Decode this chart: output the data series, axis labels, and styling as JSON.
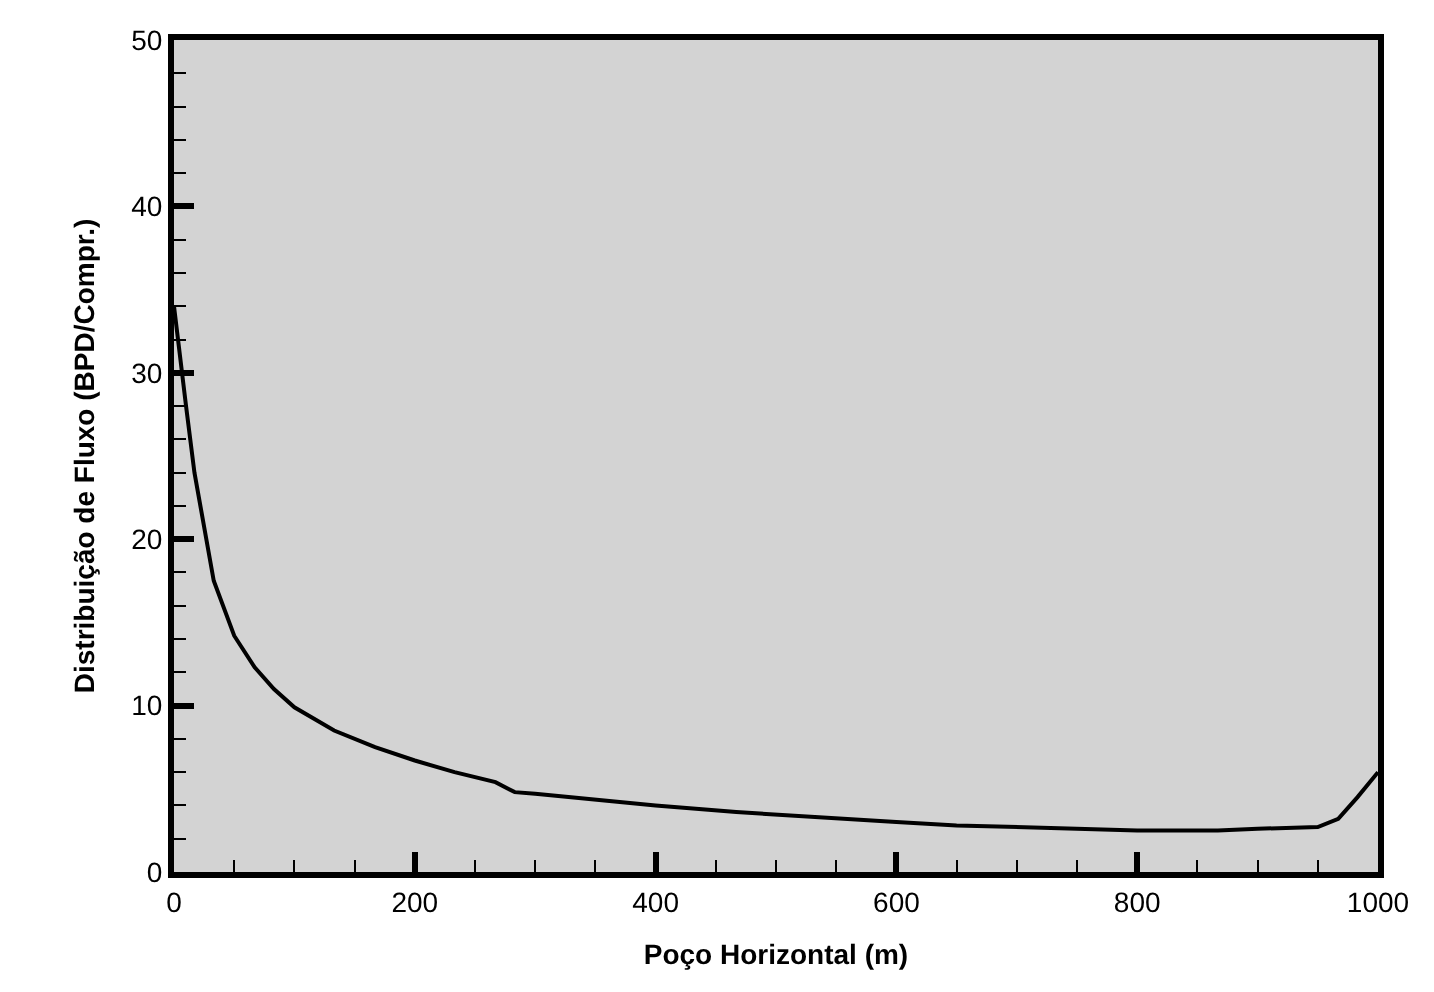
{
  "chart_data": {
    "type": "line",
    "xlabel": "Poço Horizontal (m)",
    "ylabel": "Distribuição de Fluxo (BPD/Compr.)",
    "xlim": [
      0,
      1000
    ],
    "xticks": [
      0,
      200,
      400,
      600,
      800,
      1000
    ],
    "ylim": [
      0,
      50
    ],
    "yticks": [
      0,
      10,
      20,
      30,
      40,
      50
    ],
    "grid": false,
    "marker": "none",
    "line_style": "solid",
    "x": [
      0,
      10,
      17,
      33,
      50,
      67,
      83,
      100,
      133,
      167,
      200,
      233,
      267,
      283,
      300,
      400,
      467,
      600,
      650,
      800,
      867,
      900,
      950,
      967,
      983,
      1000
    ],
    "series": [
      {
        "color": "#000000",
        "values": [
          34,
          28,
          24,
          17.5,
          14.2,
          12.3,
          11,
          9.9,
          8.5,
          7.5,
          6.7,
          6.0,
          5.4,
          4.8,
          4.7,
          4.0,
          3.6,
          3.0,
          2.8,
          2.5,
          2.5,
          2.6,
          2.7,
          3.2,
          4.5,
          6.0
        ]
      }
    ]
  }
}
